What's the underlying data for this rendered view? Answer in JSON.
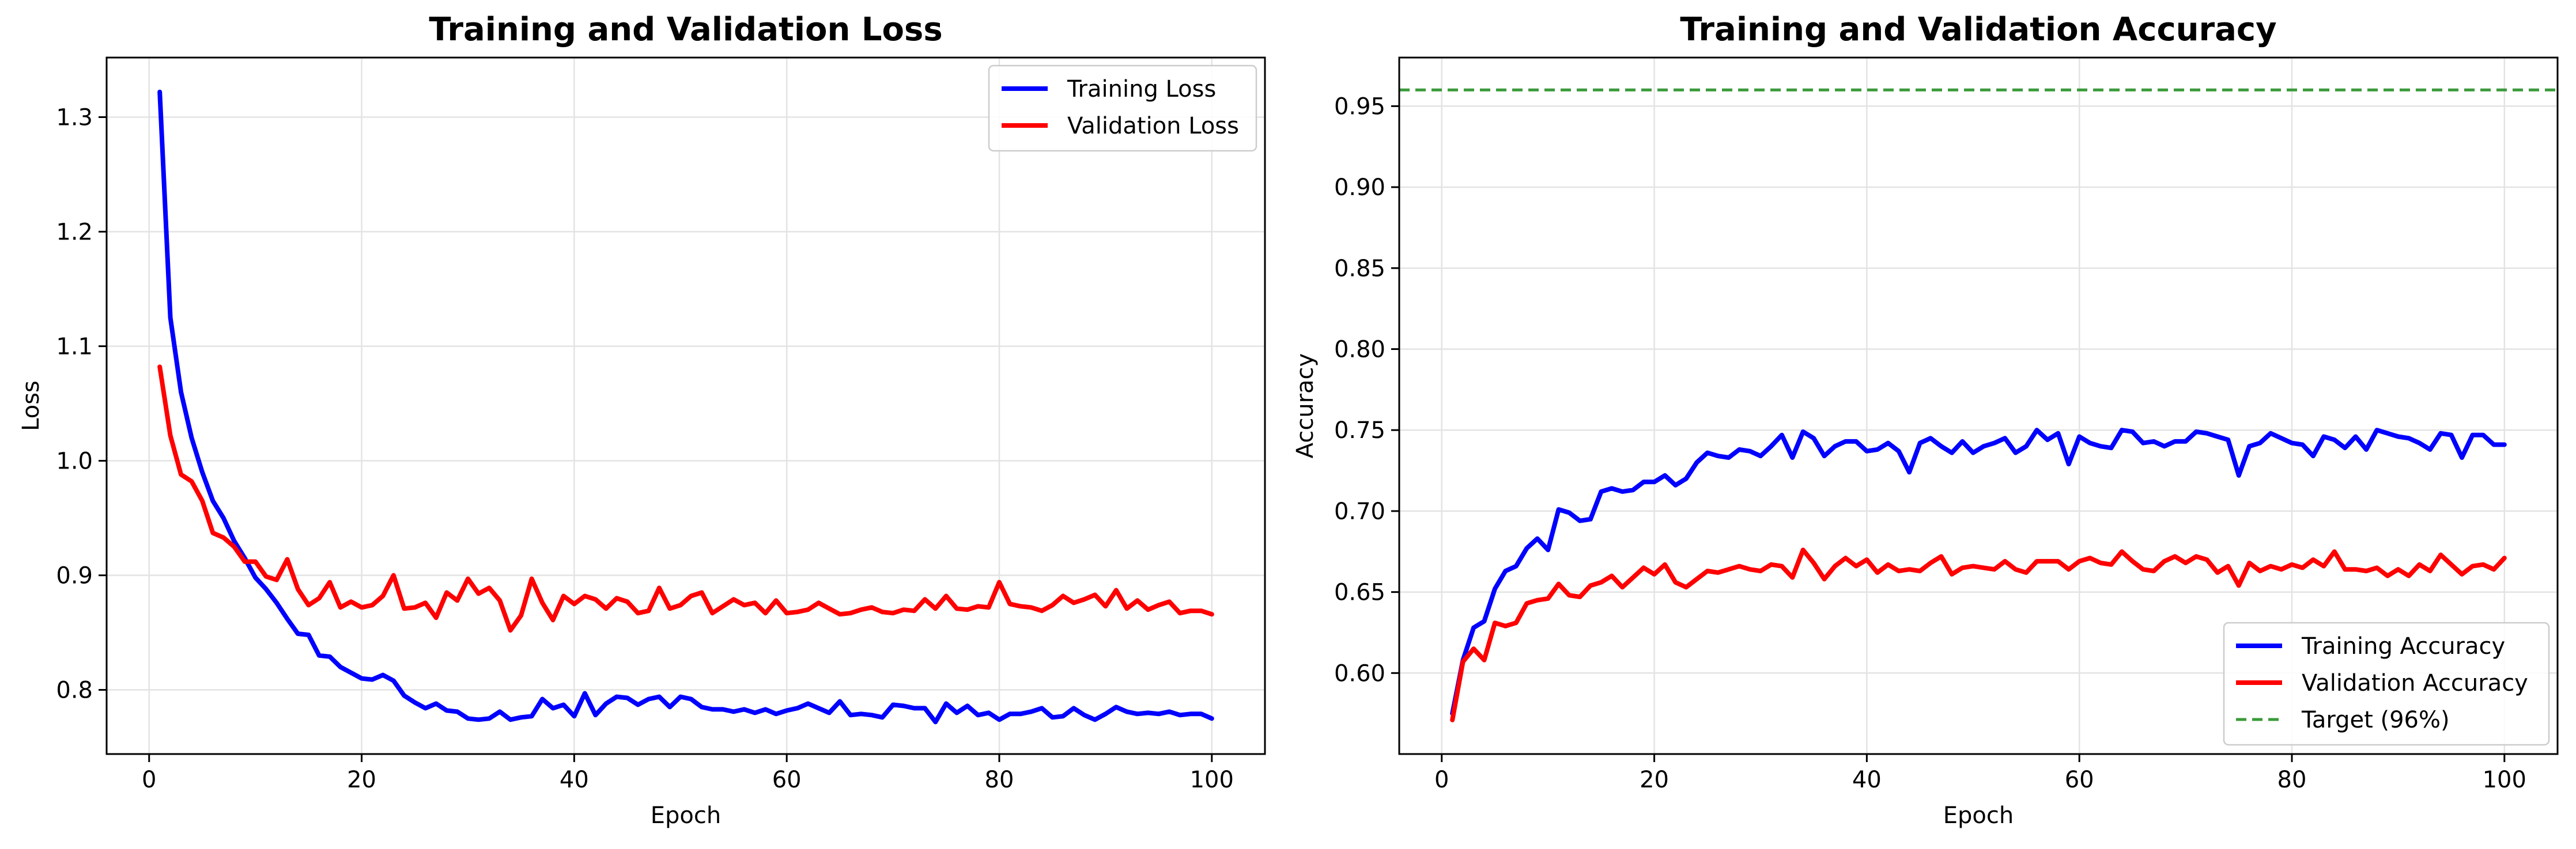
{
  "colors": {
    "training": "#0000ff",
    "validation": "#ff0000",
    "target": "#3a9a3a"
  },
  "chart_data": [
    {
      "type": "line",
      "title": "Training and Validation Loss",
      "xlabel": "Epoch",
      "ylabel": "Loss",
      "xlim": [
        -4,
        105
      ],
      "ylim": [
        0.744,
        1.352
      ],
      "grid": true,
      "legend_position": "top-right",
      "xticks": [
        0,
        20,
        40,
        60,
        80,
        100
      ],
      "yticks": [
        0.8,
        0.9,
        1.0,
        1.1,
        1.2,
        1.3
      ],
      "ytick_labels": [
        "0.8",
        "0.9",
        "1.0",
        "1.1",
        "1.2",
        "1.3"
      ],
      "series": [
        {
          "name": "Training Loss",
          "color": "#0000ff",
          "x": [
            1,
            2,
            3,
            4,
            5,
            6,
            7,
            8,
            9,
            10,
            11,
            12,
            13,
            14,
            15,
            16,
            17,
            18,
            19,
            20,
            21,
            22,
            23,
            24,
            25,
            26,
            27,
            28,
            29,
            30,
            31,
            32,
            33,
            34,
            35,
            36,
            37,
            38,
            39,
            40,
            41,
            42,
            43,
            44,
            45,
            46,
            47,
            48,
            49,
            50,
            51,
            52,
            53,
            54,
            55,
            56,
            57,
            58,
            59,
            60,
            61,
            62,
            63,
            64,
            65,
            66,
            67,
            68,
            69,
            70,
            71,
            72,
            73,
            74,
            75,
            76,
            77,
            78,
            79,
            80,
            81,
            82,
            83,
            84,
            85,
            86,
            87,
            88,
            89,
            90,
            91,
            92,
            93,
            94,
            95,
            96,
            97,
            98,
            99,
            100
          ],
          "values": [
            1.322,
            1.125,
            1.06,
            1.02,
            0.99,
            0.965,
            0.95,
            0.93,
            0.915,
            0.898,
            0.888,
            0.876,
            0.862,
            0.849,
            0.848,
            0.83,
            0.829,
            0.82,
            0.815,
            0.81,
            0.809,
            0.813,
            0.808,
            0.795,
            0.789,
            0.784,
            0.788,
            0.782,
            0.781,
            0.775,
            0.774,
            0.775,
            0.781,
            0.774,
            0.776,
            0.777,
            0.792,
            0.784,
            0.787,
            0.777,
            0.797,
            0.778,
            0.788,
            0.794,
            0.793,
            0.787,
            0.792,
            0.794,
            0.785,
            0.794,
            0.792,
            0.785,
            0.783,
            0.783,
            0.781,
            0.783,
            0.78,
            0.783,
            0.779,
            0.782,
            0.784,
            0.788,
            0.784,
            0.78,
            0.79,
            0.778,
            0.779,
            0.778,
            0.776,
            0.787,
            0.786,
            0.784,
            0.784,
            0.772,
            0.788,
            0.78,
            0.786,
            0.778,
            0.78,
            0.774,
            0.779,
            0.779,
            0.781,
            0.784,
            0.776,
            0.777,
            0.784,
            0.778,
            0.774,
            0.779,
            0.785,
            0.781,
            0.779,
            0.78,
            0.779,
            0.781,
            0.778,
            0.779,
            0.779,
            0.775
          ]
        },
        {
          "name": "Validation Loss",
          "color": "#ff0000",
          "x": [
            1,
            2,
            3,
            4,
            5,
            6,
            7,
            8,
            9,
            10,
            11,
            12,
            13,
            14,
            15,
            16,
            17,
            18,
            19,
            20,
            21,
            22,
            23,
            24,
            25,
            26,
            27,
            28,
            29,
            30,
            31,
            32,
            33,
            34,
            35,
            36,
            37,
            38,
            39,
            40,
            41,
            42,
            43,
            44,
            45,
            46,
            47,
            48,
            49,
            50,
            51,
            52,
            53,
            54,
            55,
            56,
            57,
            58,
            59,
            60,
            61,
            62,
            63,
            64,
            65,
            66,
            67,
            68,
            69,
            70,
            71,
            72,
            73,
            74,
            75,
            76,
            77,
            78,
            79,
            80,
            81,
            82,
            83,
            84,
            85,
            86,
            87,
            88,
            89,
            90,
            91,
            92,
            93,
            94,
            95,
            96,
            97,
            98,
            99,
            100
          ],
          "values": [
            1.082,
            1.022,
            0.988,
            0.982,
            0.965,
            0.937,
            0.933,
            0.925,
            0.912,
            0.912,
            0.899,
            0.896,
            0.914,
            0.888,
            0.874,
            0.88,
            0.894,
            0.872,
            0.877,
            0.872,
            0.874,
            0.882,
            0.9,
            0.871,
            0.872,
            0.876,
            0.863,
            0.885,
            0.878,
            0.897,
            0.884,
            0.889,
            0.878,
            0.852,
            0.865,
            0.897,
            0.876,
            0.861,
            0.882,
            0.875,
            0.882,
            0.879,
            0.871,
            0.88,
            0.877,
            0.867,
            0.869,
            0.889,
            0.871,
            0.874,
            0.882,
            0.885,
            0.867,
            0.873,
            0.879,
            0.874,
            0.876,
            0.867,
            0.878,
            0.867,
            0.868,
            0.87,
            0.876,
            0.871,
            0.866,
            0.867,
            0.87,
            0.872,
            0.868,
            0.867,
            0.87,
            0.869,
            0.879,
            0.871,
            0.882,
            0.871,
            0.87,
            0.873,
            0.872,
            0.894,
            0.875,
            0.873,
            0.872,
            0.869,
            0.874,
            0.882,
            0.876,
            0.879,
            0.883,
            0.873,
            0.887,
            0.871,
            0.878,
            0.87,
            0.874,
            0.877,
            0.867,
            0.869,
            0.869,
            0.866
          ]
        }
      ]
    },
    {
      "type": "line",
      "title": "Training and Validation Accuracy",
      "xlabel": "Epoch",
      "ylabel": "Accuracy",
      "xlim": [
        -4,
        105
      ],
      "ylim": [
        0.55,
        0.98
      ],
      "grid": true,
      "legend_position": "bottom-right",
      "xticks": [
        0,
        20,
        40,
        60,
        80,
        100
      ],
      "yticks": [
        0.6,
        0.65,
        0.7,
        0.75,
        0.8,
        0.85,
        0.9,
        0.95
      ],
      "ytick_labels": [
        "0.60",
        "0.65",
        "0.70",
        "0.75",
        "0.80",
        "0.85",
        "0.90",
        "0.95"
      ],
      "target": {
        "label": "Target (96%)",
        "value": 0.96,
        "color": "#3a9a3a"
      },
      "series": [
        {
          "name": "Training Accuracy",
          "color": "#0000ff",
          "x": [
            1,
            2,
            3,
            4,
            5,
            6,
            7,
            8,
            9,
            10,
            11,
            12,
            13,
            14,
            15,
            16,
            17,
            18,
            19,
            20,
            21,
            22,
            23,
            24,
            25,
            26,
            27,
            28,
            29,
            30,
            31,
            32,
            33,
            34,
            35,
            36,
            37,
            38,
            39,
            40,
            41,
            42,
            43,
            44,
            45,
            46,
            47,
            48,
            49,
            50,
            51,
            52,
            53,
            54,
            55,
            56,
            57,
            58,
            59,
            60,
            61,
            62,
            63,
            64,
            65,
            66,
            67,
            68,
            69,
            70,
            71,
            72,
            73,
            74,
            75,
            76,
            77,
            78,
            79,
            80,
            81,
            82,
            83,
            84,
            85,
            86,
            87,
            88,
            89,
            90,
            91,
            92,
            93,
            94,
            95,
            96,
            97,
            98,
            99,
            100
          ],
          "values": [
            0.575,
            0.608,
            0.628,
            0.632,
            0.652,
            0.663,
            0.666,
            0.677,
            0.683,
            0.676,
            0.701,
            0.699,
            0.694,
            0.695,
            0.712,
            0.714,
            0.712,
            0.713,
            0.718,
            0.718,
            0.722,
            0.716,
            0.72,
            0.73,
            0.736,
            0.734,
            0.733,
            0.738,
            0.737,
            0.734,
            0.74,
            0.747,
            0.733,
            0.749,
            0.745,
            0.734,
            0.74,
            0.743,
            0.743,
            0.737,
            0.738,
            0.742,
            0.737,
            0.724,
            0.742,
            0.745,
            0.74,
            0.736,
            0.743,
            0.736,
            0.74,
            0.742,
            0.745,
            0.736,
            0.74,
            0.75,
            0.744,
            0.748,
            0.729,
            0.746,
            0.742,
            0.74,
            0.739,
            0.75,
            0.749,
            0.742,
            0.743,
            0.74,
            0.743,
            0.743,
            0.749,
            0.748,
            0.746,
            0.744,
            0.722,
            0.74,
            0.742,
            0.748,
            0.745,
            0.742,
            0.741,
            0.734,
            0.746,
            0.744,
            0.739,
            0.746,
            0.738,
            0.75,
            0.748,
            0.746,
            0.745,
            0.742,
            0.738,
            0.748,
            0.747,
            0.733,
            0.747,
            0.747,
            0.741,
            0.741
          ]
        },
        {
          "name": "Validation Accuracy",
          "color": "#ff0000",
          "x": [
            1,
            2,
            3,
            4,
            5,
            6,
            7,
            8,
            9,
            10,
            11,
            12,
            13,
            14,
            15,
            16,
            17,
            18,
            19,
            20,
            21,
            22,
            23,
            24,
            25,
            26,
            27,
            28,
            29,
            30,
            31,
            32,
            33,
            34,
            35,
            36,
            37,
            38,
            39,
            40,
            41,
            42,
            43,
            44,
            45,
            46,
            47,
            48,
            49,
            50,
            51,
            52,
            53,
            54,
            55,
            56,
            57,
            58,
            59,
            60,
            61,
            62,
            63,
            64,
            65,
            66,
            67,
            68,
            69,
            70,
            71,
            72,
            73,
            74,
            75,
            76,
            77,
            78,
            79,
            80,
            81,
            82,
            83,
            84,
            85,
            86,
            87,
            88,
            89,
            90,
            91,
            92,
            93,
            94,
            95,
            96,
            97,
            98,
            99,
            100
          ],
          "values": [
            0.571,
            0.607,
            0.615,
            0.608,
            0.631,
            0.629,
            0.631,
            0.643,
            0.645,
            0.646,
            0.655,
            0.648,
            0.647,
            0.654,
            0.656,
            0.66,
            0.653,
            0.659,
            0.665,
            0.661,
            0.667,
            0.656,
            0.653,
            0.658,
            0.663,
            0.662,
            0.664,
            0.666,
            0.664,
            0.663,
            0.667,
            0.666,
            0.659,
            0.676,
            0.668,
            0.658,
            0.666,
            0.671,
            0.666,
            0.67,
            0.662,
            0.667,
            0.663,
            0.664,
            0.663,
            0.668,
            0.672,
            0.661,
            0.665,
            0.666,
            0.665,
            0.664,
            0.669,
            0.664,
            0.662,
            0.669,
            0.669,
            0.669,
            0.664,
            0.669,
            0.671,
            0.668,
            0.667,
            0.675,
            0.669,
            0.664,
            0.663,
            0.669,
            0.672,
            0.668,
            0.672,
            0.67,
            0.662,
            0.666,
            0.654,
            0.668,
            0.663,
            0.666,
            0.664,
            0.667,
            0.665,
            0.67,
            0.666,
            0.675,
            0.664,
            0.664,
            0.663,
            0.665,
            0.66,
            0.664,
            0.66,
            0.667,
            0.663,
            0.673,
            0.667,
            0.661,
            0.666,
            0.667,
            0.664,
            0.671
          ]
        }
      ]
    }
  ]
}
